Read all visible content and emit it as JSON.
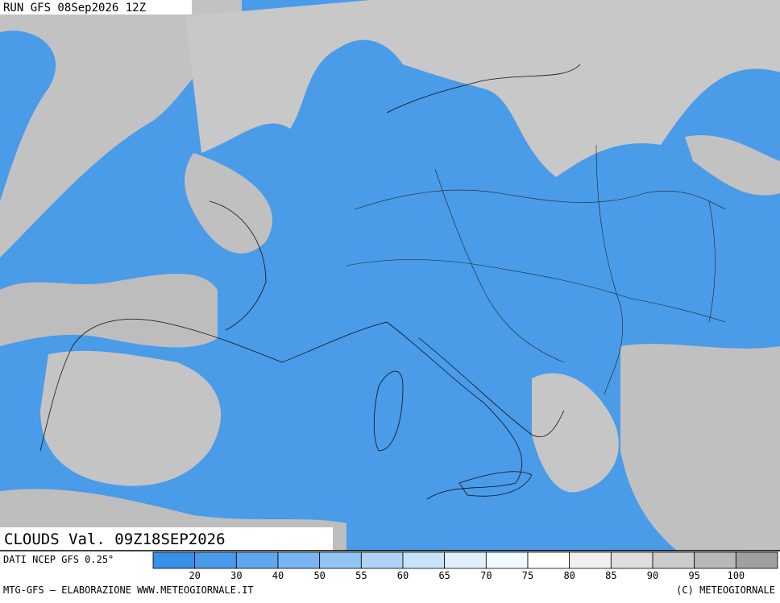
{
  "header": {
    "run": "RUN GFS 08Sep2026 12Z"
  },
  "map": {
    "title": "CLOUDS Val. 09Z18SEP2026"
  },
  "legend": {
    "source": "DATI NCEP GFS 0.25°",
    "colors": [
      "#3a8fe6",
      "#4a9aea",
      "#5ea6ee",
      "#78b5f1",
      "#92c4f4",
      "#aed3f7",
      "#c8e2fa",
      "#e0f0fc",
      "#f0fbff",
      "#ffffff",
      "#f0f0f0",
      "#dedede",
      "#cccccc",
      "#b8b8b8",
      "#a0a0a0"
    ],
    "ticks": [
      "20",
      "30",
      "40",
      "50",
      "55",
      "60",
      "65",
      "70",
      "75",
      "80",
      "85",
      "90",
      "95",
      "100"
    ]
  },
  "footer": {
    "left": "MTG-GFS — ELABORAZIONE WWW.METEOGIORNALE.IT",
    "right": "(C) METEOGIORNALE"
  }
}
